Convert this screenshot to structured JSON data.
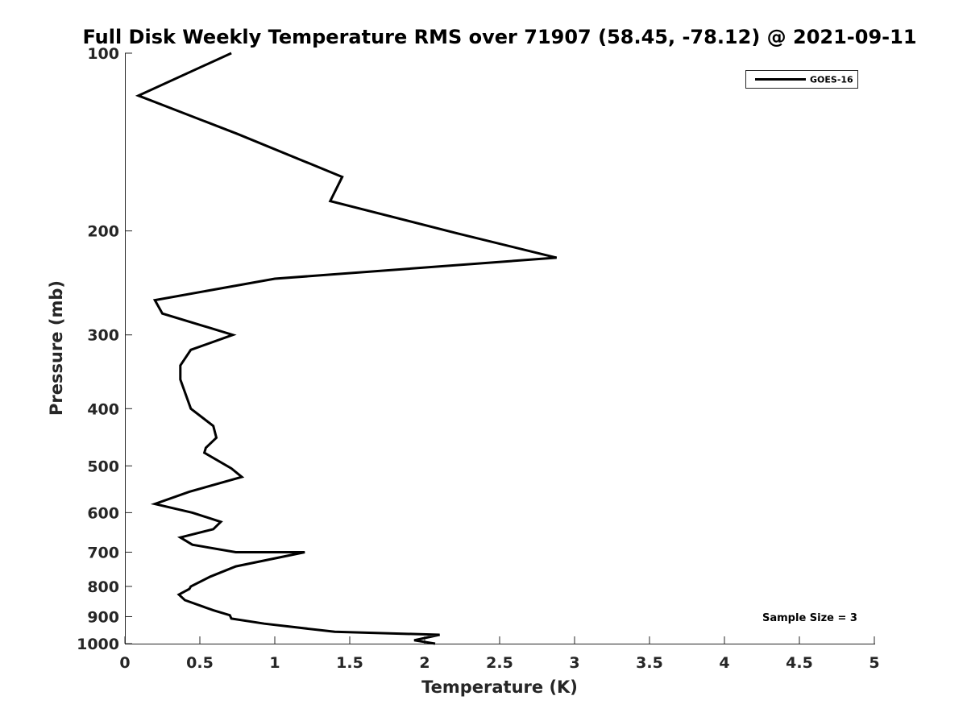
{
  "chart_data": {
    "type": "line",
    "title": "Full Disk Weekly Temperature RMS over 71907 (58.45, -78.12) @ 2021-09-11",
    "xlabel": "Temperature (K)",
    "ylabel": "Pressure (mb)",
    "xlim": [
      0,
      5
    ],
    "ylim": [
      1000,
      100
    ],
    "yscale": "log",
    "x_ticks": [
      0,
      0.5,
      1,
      1.5,
      2,
      2.5,
      3,
      3.5,
      4,
      4.5,
      5
    ],
    "x_tick_labels": [
      "0",
      "0.5",
      "1",
      "1.5",
      "2",
      "2.5",
      "3",
      "3.5",
      "4",
      "4.5",
      "5"
    ],
    "y_ticks": [
      100,
      200,
      300,
      400,
      500,
      600,
      700,
      800,
      900,
      1000
    ],
    "y_tick_labels": [
      "100",
      "200",
      "300",
      "400",
      "500",
      "600",
      "700",
      "800",
      "900",
      "1000"
    ],
    "grid": false,
    "legend": {
      "placement": "top-right",
      "entries": [
        "GOES-16"
      ]
    },
    "annotations": [
      {
        "text": "Sample Size = 3",
        "placement": "bottom-right"
      }
    ],
    "series": [
      {
        "name": "GOES-16",
        "color": "#000000",
        "points": [
          [
            0.71,
            100
          ],
          [
            0.09,
            118
          ],
          [
            0.75,
            137
          ],
          [
            1.45,
            162
          ],
          [
            1.37,
            178
          ],
          [
            2.22,
            202
          ],
          [
            2.88,
            222
          ],
          [
            1.0,
            241
          ],
          [
            0.2,
            262
          ],
          [
            0.25,
            276
          ],
          [
            0.72,
            300
          ],
          [
            0.44,
            318
          ],
          [
            0.37,
            338
          ],
          [
            0.37,
            357
          ],
          [
            0.44,
            400
          ],
          [
            0.59,
            428
          ],
          [
            0.61,
            448
          ],
          [
            0.54,
            466
          ],
          [
            0.53,
            475
          ],
          [
            0.71,
            505
          ],
          [
            0.78,
            522
          ],
          [
            0.43,
            553
          ],
          [
            0.2,
            580
          ],
          [
            0.45,
            600
          ],
          [
            0.64,
            622
          ],
          [
            0.59,
            640
          ],
          [
            0.37,
            661
          ],
          [
            0.45,
            680
          ],
          [
            0.74,
            700
          ],
          [
            1.2,
            700
          ],
          [
            0.74,
            740
          ],
          [
            0.57,
            770
          ],
          [
            0.44,
            800
          ],
          [
            0.43,
            808
          ],
          [
            0.36,
            826
          ],
          [
            0.4,
            844
          ],
          [
            0.59,
            878
          ],
          [
            0.7,
            895
          ],
          [
            0.71,
            907
          ],
          [
            0.93,
            925
          ],
          [
            1.4,
            955
          ],
          [
            2.1,
            966
          ],
          [
            1.93,
            987
          ],
          [
            2.07,
            1000
          ]
        ]
      }
    ]
  }
}
